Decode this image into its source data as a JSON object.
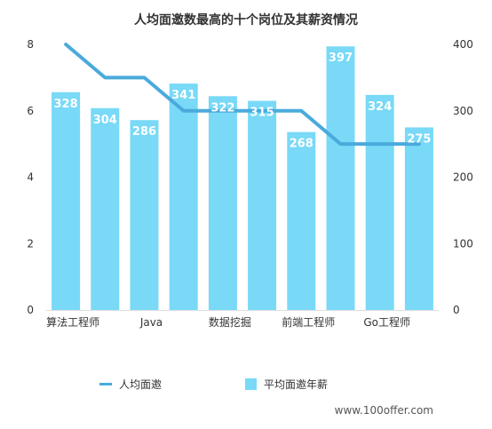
{
  "chart_data": {
    "type": "bar",
    "title": "人均面邀数最高的十个岗位及其薪资情况",
    "categories": [
      "算法工程师",
      "",
      "Java",
      "",
      "数据挖掘",
      "",
      "前端工程师",
      "",
      "Go工程师",
      ""
    ],
    "series": [
      {
        "name": "平均面邀年薪",
        "type": "bar",
        "axis": "right",
        "values": [
          328,
          304,
          286,
          341,
          322,
          315,
          268,
          397,
          324,
          275
        ],
        "color": "#79D9F7"
      },
      {
        "name": "人均面邀",
        "type": "line",
        "axis": "left",
        "values": [
          8,
          7,
          7,
          6,
          6,
          6,
          6,
          5,
          5,
          5
        ],
        "color": "#4AAADC"
      }
    ],
    "y_left": {
      "min": 0,
      "max": 8,
      "ticks": [
        0,
        2,
        4,
        6,
        8
      ]
    },
    "y_right": {
      "min": 0,
      "max": 400,
      "ticks": [
        0,
        100,
        200,
        300,
        400
      ]
    },
    "grid": false,
    "legend_position": "bottom"
  },
  "watermark": "www.100offer.com"
}
